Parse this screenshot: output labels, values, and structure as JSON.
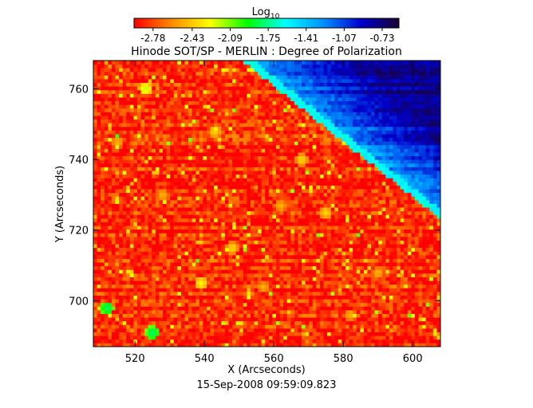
{
  "chart_data": {
    "type": "heatmap",
    "title": "Hinode SOT/SP - MERLIN : Degree of Polarization",
    "xlabel": "X (Arcseconds)",
    "ylabel": "Y (Arcseconds)",
    "timestamp": "15-Sep-2008 09:59:09.823",
    "xlim": [
      508,
      608
    ],
    "ylim": [
      687,
      768
    ],
    "x_ticks": [
      520,
      540,
      560,
      580,
      600
    ],
    "y_ticks": [
      700,
      720,
      740,
      760
    ],
    "x_tick_labels": [
      "520",
      "540",
      "560",
      "580",
      "600"
    ],
    "y_tick_labels": [
      "700",
      "720",
      "740",
      "760"
    ],
    "colorbar": {
      "label_base": "Log",
      "label_subscript": "10",
      "min": -2.95,
      "max": -0.58,
      "tick_values": [
        -2.78,
        -2.43,
        -2.09,
        -1.75,
        -1.41,
        -1.07,
        -0.73
      ],
      "tick_labels": [
        "-2.78",
        "-2.43",
        "-2.09",
        "-1.75",
        "-1.41",
        "-1.07",
        "-0.73"
      ],
      "colormap": [
        "#ff0000",
        "#ff8c00",
        "#ffff00",
        "#00ff00",
        "#00ffff",
        "#0090ff",
        "#0000cc",
        "#1a0030"
      ]
    },
    "limb": {
      "description_free_values": true,
      "start": [
        552,
        768
      ],
      "end": [
        608,
        724
      ]
    },
    "disk_level": -2.85,
    "limb_level": -1.6,
    "offlimb_level_near": -1.3,
    "offlimb_level_far": -0.78,
    "bright_features": [
      {
        "x": 523,
        "y": 760,
        "level": -2.2
      },
      {
        "x": 512,
        "y": 698,
        "level": -1.8
      },
      {
        "x": 525,
        "y": 691,
        "level": -1.8
      },
      {
        "x": 543,
        "y": 748,
        "level": -2.4
      },
      {
        "x": 568,
        "y": 740,
        "level": -2.4
      },
      {
        "x": 575,
        "y": 725,
        "level": -2.4
      },
      {
        "x": 539,
        "y": 705,
        "level": -2.3
      },
      {
        "x": 548,
        "y": 715,
        "level": -2.4
      },
      {
        "x": 557,
        "y": 704,
        "level": -2.5
      },
      {
        "x": 528,
        "y": 730,
        "level": -2.5
      },
      {
        "x": 562,
        "y": 727,
        "level": -2.5
      },
      {
        "x": 590,
        "y": 708,
        "level": -2.5
      },
      {
        "x": 582,
        "y": 696,
        "level": -2.5
      },
      {
        "x": 515,
        "y": 745,
        "level": -2.5
      }
    ]
  }
}
